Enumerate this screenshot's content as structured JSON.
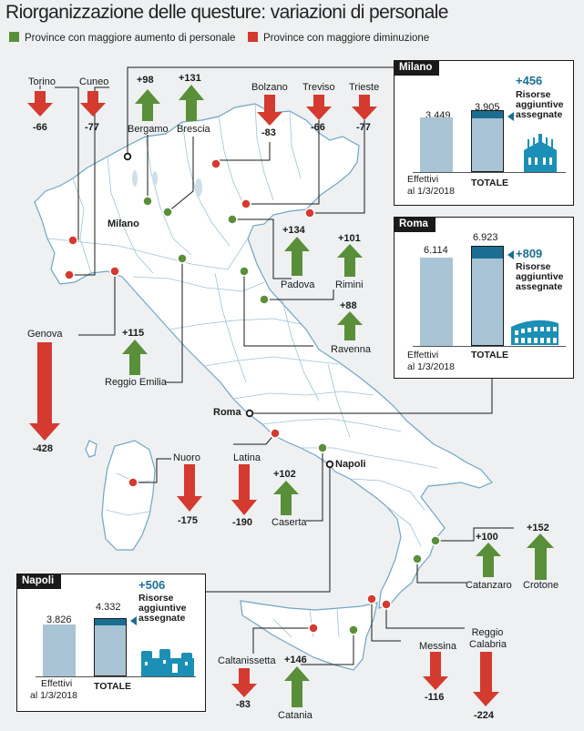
{
  "title": "Riorganizzazione delle questure: variazioni di personale",
  "legend": {
    "increase_label": "Province con maggiore aumento di personale",
    "decrease_label": "Province con maggiore diminuzione",
    "increase_color": "#5a8f3a",
    "decrease_color": "#d43a2f"
  },
  "provinces": [
    {
      "name": "Torino",
      "change": "-66",
      "type": "decrease"
    },
    {
      "name": "Cuneo",
      "change": "-77",
      "type": "decrease"
    },
    {
      "name": "Bergamo",
      "change": "+98",
      "type": "increase"
    },
    {
      "name": "Brescia",
      "change": "+131",
      "type": "increase"
    },
    {
      "name": "Bolzano",
      "change": "-83",
      "type": "decrease"
    },
    {
      "name": "Treviso",
      "change": "-66",
      "type": "decrease"
    },
    {
      "name": "Trieste",
      "change": "-77",
      "type": "decrease"
    },
    {
      "name": "Padova",
      "change": "+134",
      "type": "increase"
    },
    {
      "name": "Rimini",
      "change": "+101",
      "type": "increase"
    },
    {
      "name": "Ravenna",
      "change": "+88",
      "type": "increase"
    },
    {
      "name": "Genova",
      "change": "-428",
      "type": "decrease"
    },
    {
      "name": "Reggio Emilia",
      "change": "+115",
      "type": "increase"
    },
    {
      "name": "Nuoro",
      "change": "-175",
      "type": "decrease"
    },
    {
      "name": "Latina",
      "change": "-190",
      "type": "decrease"
    },
    {
      "name": "Caserta",
      "change": "+102",
      "type": "increase"
    },
    {
      "name": "Catanzaro",
      "change": "+100",
      "type": "increase"
    },
    {
      "name": "Crotone",
      "change": "+152",
      "type": "increase"
    },
    {
      "name": "Caltanissetta",
      "change": "-83",
      "type": "decrease"
    },
    {
      "name": "Catania",
      "change": "+146",
      "type": "increase"
    },
    {
      "name": "Messina",
      "change": "-116",
      "type": "decrease"
    },
    {
      "name": "Reggio Calabria",
      "change": "-224",
      "type": "decrease"
    }
  ],
  "city_labels": {
    "milano": "Milano",
    "roma": "Roma",
    "napoli": "Napoli"
  },
  "boxes": {
    "milano": {
      "tab": "Milano",
      "effettivi": "3.449",
      "totale": "3.905",
      "added": "+456",
      "effettivi_value": 3449,
      "totale_value": 3905,
      "effettivi_label_1": "Effettivi",
      "effettivi_label_2": "al 1/3/2018",
      "totale_label": "TOTALE",
      "res_1": "Risorse",
      "res_2": "aggiuntive",
      "res_3": "assegnate",
      "icon": "duomo-milano-icon"
    },
    "roma": {
      "tab": "Roma",
      "effettivi": "6.114",
      "totale": "6.923",
      "added": "+809",
      "effettivi_value": 6114,
      "totale_value": 6923,
      "effettivi_label_1": "Effettivi",
      "effettivi_label_2": "al 1/3/2018",
      "totale_label": "TOTALE",
      "res_1": "Risorse",
      "res_2": "aggiuntive",
      "res_3": "assegnate",
      "icon": "colosseo-icon"
    },
    "napoli": {
      "tab": "Napoli",
      "effettivi": "3.826",
      "totale": "4.332",
      "added": "+506",
      "effettivi_value": 3826,
      "totale_value": 4332,
      "effettivi_label_1": "Effettivi",
      "effettivi_label_2": "al 1/3/2018",
      "totale_label": "TOTALE",
      "res_1": "Risorse",
      "res_2": "aggiuntive",
      "res_3": "assegnate",
      "icon": "castel-nuovo-icon"
    }
  }
}
